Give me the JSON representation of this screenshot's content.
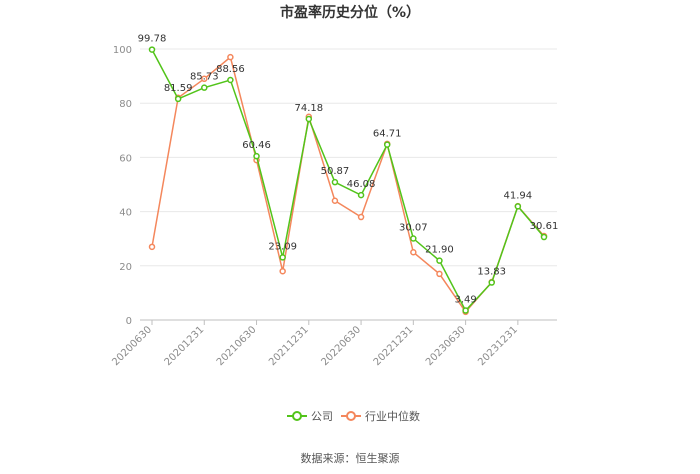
{
  "chart_data": {
    "type": "line",
    "title": "市盈率历史分位（%）",
    "ylim": [
      0,
      100
    ],
    "yticks": [
      0,
      20,
      40,
      60,
      80,
      100
    ],
    "grid": true,
    "legend_position": "bottom-center",
    "x": [
      "20200630",
      "20200930",
      "20201231",
      "20210331",
      "20210630",
      "20210930",
      "20211231",
      "20220331",
      "20220630",
      "20220930",
      "20221231",
      "20230331",
      "20230630",
      "20230930",
      "20231231",
      "20240331"
    ],
    "xtick_labels": [
      "20200630",
      "20201231",
      "20210630",
      "20211231",
      "20220630",
      "20221231",
      "20230630",
      "20231231"
    ],
    "series": [
      {
        "name": "公司",
        "color": "#52c41a",
        "values": [
          99.78,
          81.59,
          85.73,
          88.56,
          60.46,
          23.09,
          74.18,
          50.87,
          46.08,
          64.71,
          30.07,
          21.9,
          3.49,
          13.83,
          41.94,
          30.61
        ],
        "labels": [
          "99.78",
          "81.59",
          "85.73",
          "88.56",
          "60.46",
          "23.09",
          "74.18",
          "50.87",
          "46.08",
          "64.71",
          "30.07",
          "21.90",
          "3.49",
          "13.83",
          "41.94",
          "30.61"
        ]
      },
      {
        "name": "行业中位数",
        "color": "#f4875c",
        "values": [
          27,
          82,
          89,
          97,
          59,
          18,
          75,
          44,
          38,
          65,
          25,
          17,
          3,
          14,
          42,
          31
        ]
      }
    ]
  },
  "source": "数据来源：恒生聚源"
}
